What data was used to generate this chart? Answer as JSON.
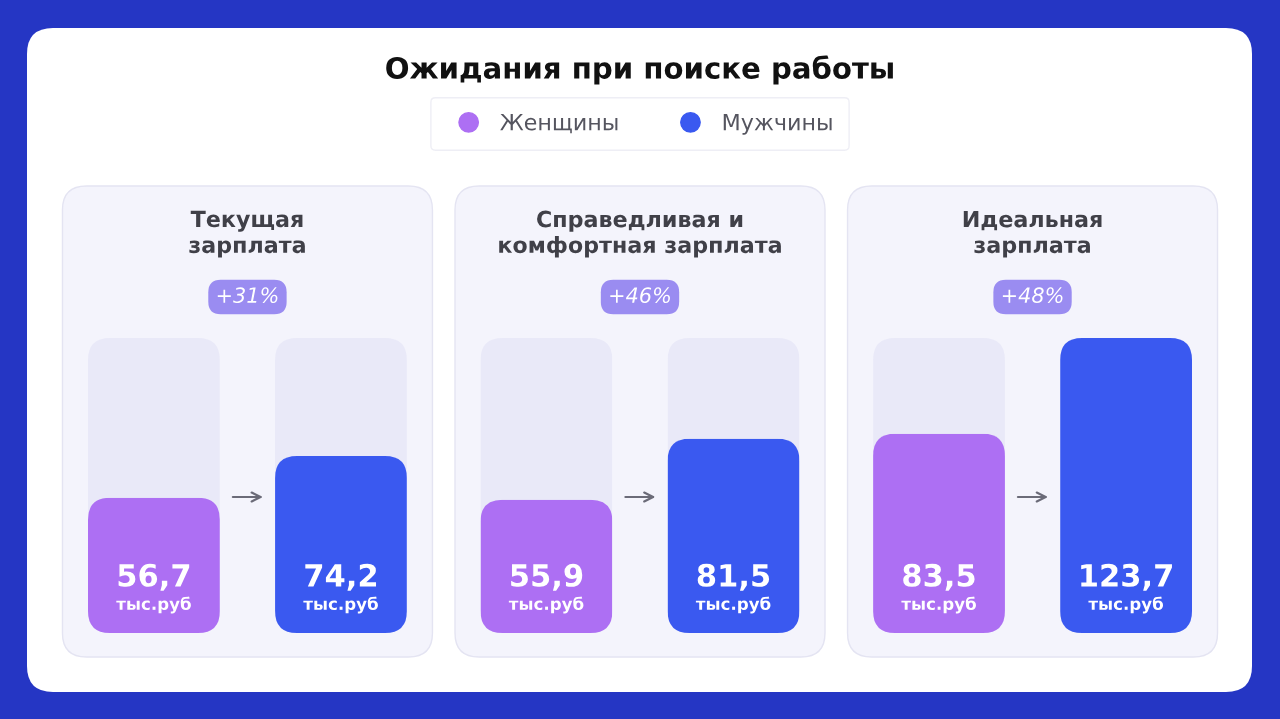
{
  "chart_data": {
    "type": "bar",
    "title": "Ожидания при поиске работы",
    "categories": [
      "Текущая\nзарплата",
      "Справедливая и\nкомфортная зарплата",
      "Идеальная\nзарплата"
    ],
    "series": [
      {
        "name": "Женщины",
        "color": "#ad6ff3",
        "values": [
          56.7,
          55.9,
          83.5
        ],
        "value_labels": [
          "56,7\nтыс.руб",
          "55,9\nтыс.руб",
          "83,5\nтыс.руб"
        ]
      },
      {
        "name": "Мужчины",
        "color": "#3a59f0",
        "values": [
          74.2,
          81.5,
          123.7
        ],
        "value_labels": [
          "74,2\nтыс.руб",
          "81,5\nтыс.руб",
          "123,7\nтыс.руб"
        ]
      }
    ],
    "annotations": [
      "+31%",
      "+46%",
      "+48%"
    ],
    "legend": "top",
    "tick_labels": "x"
  }
}
